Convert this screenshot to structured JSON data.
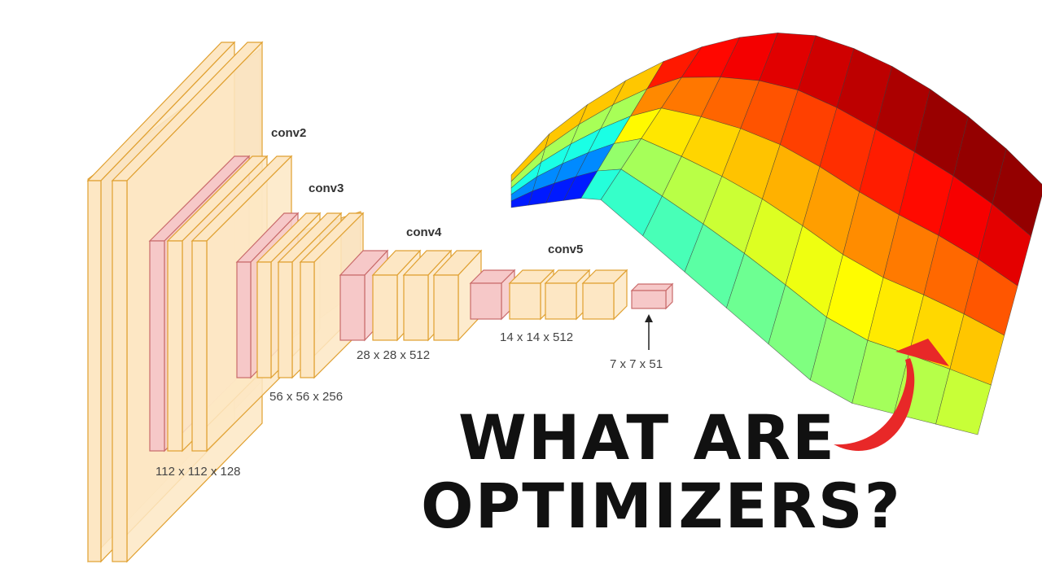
{
  "network": {
    "stage_labels": {
      "conv2": "conv2",
      "conv3": "conv3",
      "conv4": "conv4",
      "conv5": "conv5"
    },
    "dims": {
      "d112": "112 x 112 x 128",
      "d56": "56 x 56 x 256",
      "d28": "28 x 28 x 512",
      "d14": "14 x 14 x 512",
      "d7": "7 x 7 x 51"
    },
    "colors": {
      "conv_face": "#fde7c4",
      "conv_edge": "#e0a030",
      "pool_face": "#f6c8c8",
      "pool_edge": "#c96a6a",
      "back_fill": "#e9d2b4"
    }
  },
  "headline": {
    "line1": "WHAT ARE",
    "line2": "OPTIMIZERS?"
  },
  "arrow": {
    "color": "#e82828"
  },
  "surface": {
    "shape": "saddle",
    "colormap": "jet"
  }
}
